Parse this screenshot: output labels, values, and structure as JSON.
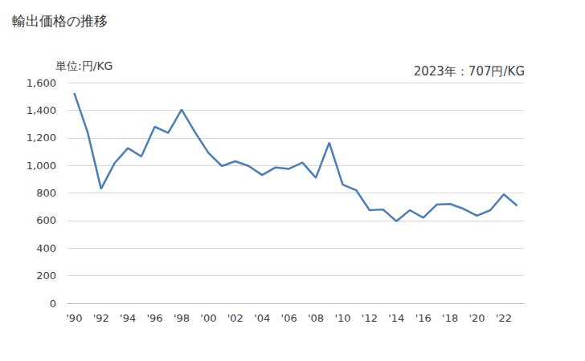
{
  "chart_data": {
    "type": "line",
    "title": "輸出価格の推移",
    "y_label": "単位:円/KG",
    "annotations": [
      "2023年：707円/KG"
    ],
    "categories": [
      "'90",
      null,
      "'92",
      null,
      "'94",
      null,
      "'96",
      null,
      "'98",
      null,
      "'00",
      null,
      "'02",
      null,
      "'04",
      null,
      "'06",
      null,
      "'08",
      null,
      "'10",
      null,
      "'12",
      null,
      "'14",
      null,
      "'16",
      null,
      "'18",
      null,
      "'20",
      null,
      "'22",
      null
    ],
    "values": [
      1525,
      1240,
      830,
      1015,
      1125,
      1065,
      1280,
      1235,
      1405,
      1240,
      1090,
      995,
      1030,
      995,
      930,
      985,
      975,
      1020,
      910,
      1165,
      860,
      820,
      675,
      680,
      595,
      675,
      620,
      715,
      720,
      685,
      635,
      675,
      790,
      707
    ],
    "color": "#4a7ebb",
    "ylim": [
      0,
      1600
    ],
    "yticks": [
      0,
      200,
      400,
      600,
      800,
      {
        "value": 1000,
        "label": "1,000"
      },
      {
        "value": 1200,
        "label": "1,200"
      },
      {
        "value": 1400,
        "label": "1,400"
      },
      {
        "value": 1600,
        "label": "1,600"
      }
    ],
    "grid": true
  }
}
